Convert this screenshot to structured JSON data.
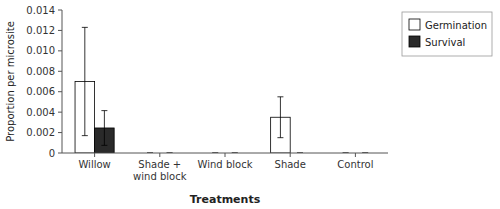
{
  "chart_data": {
    "type": "bar",
    "categories": [
      "Willow",
      "Shade +\nwind block",
      "Wind block",
      "Shade",
      "Control"
    ],
    "series": [
      {
        "name": "Germination",
        "color": "#ffffff",
        "values": [
          0.007,
          0.0,
          0.0,
          0.0035,
          0.0
        ],
        "errors": [
          0.0053,
          0.0,
          0.0,
          0.002,
          0.0
        ]
      },
      {
        "name": "Survival",
        "color": "#2a2a2a",
        "values": [
          0.00245,
          0.0,
          0.0,
          0.0,
          0.0
        ],
        "errors": [
          0.0017,
          0.0,
          0.0,
          0.0,
          0.0
        ]
      }
    ],
    "ylim": [
      0,
      0.014
    ],
    "yticks": [
      0,
      0.002,
      0.004,
      0.006,
      0.008,
      {
        "value": 0.01,
        "label": "0.010"
      },
      0.012,
      0.014
    ],
    "ylabel": "Proportion per microsite",
    "xlabel": "Treatments",
    "grid": false,
    "legend": "right"
  }
}
